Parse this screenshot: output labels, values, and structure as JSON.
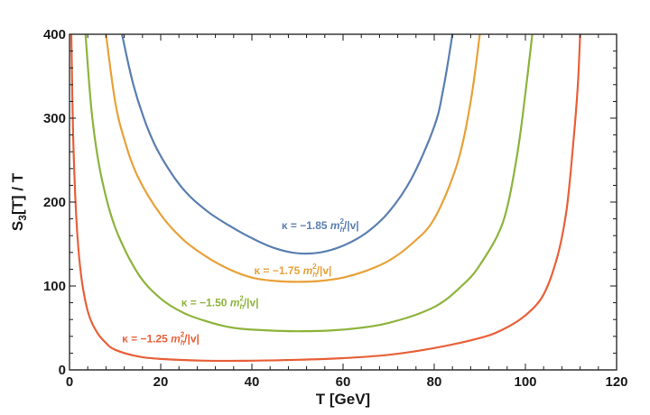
{
  "chart_data": {
    "type": "line",
    "xlabel": "T [GeV]",
    "ylabel_main": "S",
    "ylabel_sub": "3",
    "ylabel_rest": "[T] / T",
    "xlim": [
      0,
      120
    ],
    "ylim": [
      0,
      400
    ],
    "xticks": [
      0,
      20,
      40,
      60,
      80,
      100,
      120
    ],
    "yticks": [
      0,
      100,
      200,
      300,
      400
    ],
    "grid": false,
    "series": [
      {
        "label_prefix": "κ = −1.85 ",
        "label_m": "m",
        "label_sub": "h",
        "label_sup": "2",
        "label_suffix": "/|v|",
        "color": "#5a7fb0",
        "label_at": [
          55,
          168
        ],
        "points": [
          [
            11.5,
            400
          ],
          [
            14,
            340
          ],
          [
            17,
            290
          ],
          [
            20,
            255
          ],
          [
            25,
            215
          ],
          [
            30,
            190
          ],
          [
            35,
            172
          ],
          [
            40,
            157
          ],
          [
            45,
            145
          ],
          [
            50,
            139
          ],
          [
            55,
            140
          ],
          [
            60,
            148
          ],
          [
            65,
            163
          ],
          [
            70,
            188
          ],
          [
            75,
            228
          ],
          [
            80,
            290
          ],
          [
            82,
            335
          ],
          [
            84,
            400
          ]
        ]
      },
      {
        "label_prefix": "κ = −1.75 ",
        "label_m": "m",
        "label_sub": "h",
        "label_sup": "2",
        "label_suffix": "/|v|",
        "color": "#e8a13a",
        "label_at": [
          49,
          114
        ],
        "points": [
          [
            8,
            400
          ],
          [
            10,
            320
          ],
          [
            12,
            275
          ],
          [
            15,
            230
          ],
          [
            20,
            185
          ],
          [
            25,
            155
          ],
          [
            30,
            135
          ],
          [
            35,
            120
          ],
          [
            40,
            110
          ],
          [
            45,
            106
          ],
          [
            50,
            105
          ],
          [
            55,
            106
          ],
          [
            60,
            110
          ],
          [
            65,
            118
          ],
          [
            70,
            130
          ],
          [
            75,
            150
          ],
          [
            80,
            180
          ],
          [
            85,
            245
          ],
          [
            88,
            320
          ],
          [
            90,
            400
          ]
        ]
      },
      {
        "label_prefix": "κ = −1.50 ",
        "label_m": "m",
        "label_sub": "h",
        "label_sup": "2",
        "label_suffix": "/|v|",
        "color": "#8db43c",
        "label_at": [
          33,
          76
        ],
        "points": [
          [
            3.5,
            400
          ],
          [
            5,
            300
          ],
          [
            7,
            230
          ],
          [
            10,
            170
          ],
          [
            15,
            115
          ],
          [
            20,
            85
          ],
          [
            25,
            68
          ],
          [
            30,
            58
          ],
          [
            35,
            51
          ],
          [
            40,
            48
          ],
          [
            50,
            46
          ],
          [
            60,
            48
          ],
          [
            70,
            56
          ],
          [
            80,
            75
          ],
          [
            86,
            100
          ],
          [
            90,
            125
          ],
          [
            95,
            175
          ],
          [
            98,
            250
          ],
          [
            100,
            330
          ],
          [
            101.5,
            400
          ]
        ]
      },
      {
        "label_prefix": "κ = −1.25 ",
        "label_m": "m",
        "label_sub": "h",
        "label_sup": "2",
        "label_suffix": "/|v|",
        "color": "#e8613a",
        "label_at": [
          20,
          33
        ],
        "points": [
          [
            0.4,
            400
          ],
          [
            0.8,
            280
          ],
          [
            1.5,
            180
          ],
          [
            2.5,
            115
          ],
          [
            4,
            70
          ],
          [
            6,
            45
          ],
          [
            8,
            32
          ],
          [
            10,
            24
          ],
          [
            15,
            16
          ],
          [
            20,
            13
          ],
          [
            30,
            11
          ],
          [
            40,
            11
          ],
          [
            50,
            12
          ],
          [
            60,
            14
          ],
          [
            70,
            18
          ],
          [
            80,
            26
          ],
          [
            90,
            38
          ],
          [
            95,
            48
          ],
          [
            100,
            65
          ],
          [
            104,
            90
          ],
          [
            107,
            135
          ],
          [
            109,
            190
          ],
          [
            110.5,
            270
          ],
          [
            111.5,
            340
          ],
          [
            112,
            400
          ]
        ]
      }
    ]
  }
}
